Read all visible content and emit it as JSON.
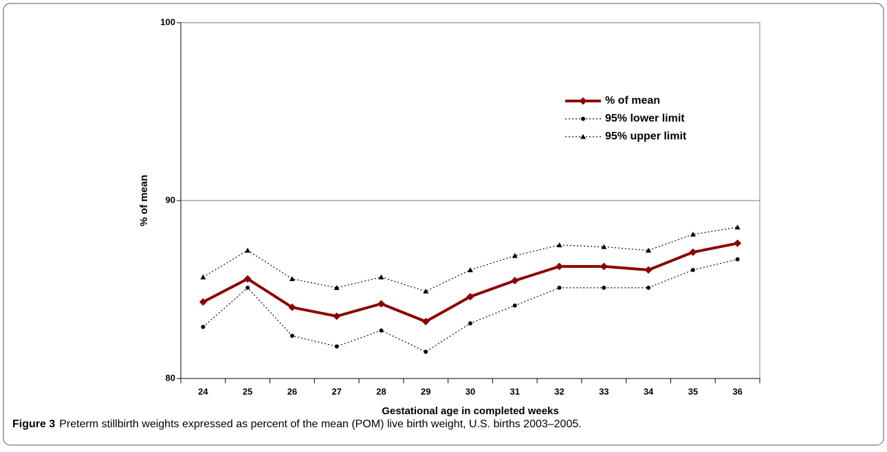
{
  "chart_data": {
    "type": "line",
    "x_label": "Gestational age in completed weeks",
    "y_label": "% of mean",
    "categories": [
      "24",
      "25",
      "26",
      "27",
      "28",
      "29",
      "30",
      "31",
      "32",
      "33",
      "34",
      "35",
      "36"
    ],
    "series": [
      {
        "name": "% of mean",
        "color": "#8b0000",
        "marker": "diamond",
        "dashed": false,
        "values": [
          84.3,
          85.6,
          84.0,
          83.5,
          84.2,
          83.2,
          84.6,
          85.5,
          86.3,
          86.3,
          86.1,
          87.1,
          87.6
        ]
      },
      {
        "name": "95% lower limit",
        "color": "#000000",
        "marker": "circle",
        "dashed": true,
        "values": [
          82.9,
          85.1,
          82.4,
          81.8,
          82.7,
          81.5,
          83.1,
          84.1,
          85.1,
          85.1,
          85.1,
          86.1,
          86.7
        ]
      },
      {
        "name": "95% upper limit",
        "color": "#000000",
        "marker": "triangle",
        "dashed": true,
        "values": [
          85.7,
          87.2,
          85.6,
          85.1,
          85.7,
          84.9,
          86.1,
          86.9,
          87.5,
          87.4,
          87.2,
          88.1,
          88.5
        ]
      }
    ],
    "ylim": [
      80,
      100
    ],
    "yticks": [
      80,
      90,
      100
    ],
    "grid": true,
    "legend": "upper right"
  },
  "figure": {
    "label": "Figure 3",
    "caption": "Preterm stillbirth weights expressed as percent of the mean (POM) live birth weight, U.S. births 2003–2005."
  }
}
